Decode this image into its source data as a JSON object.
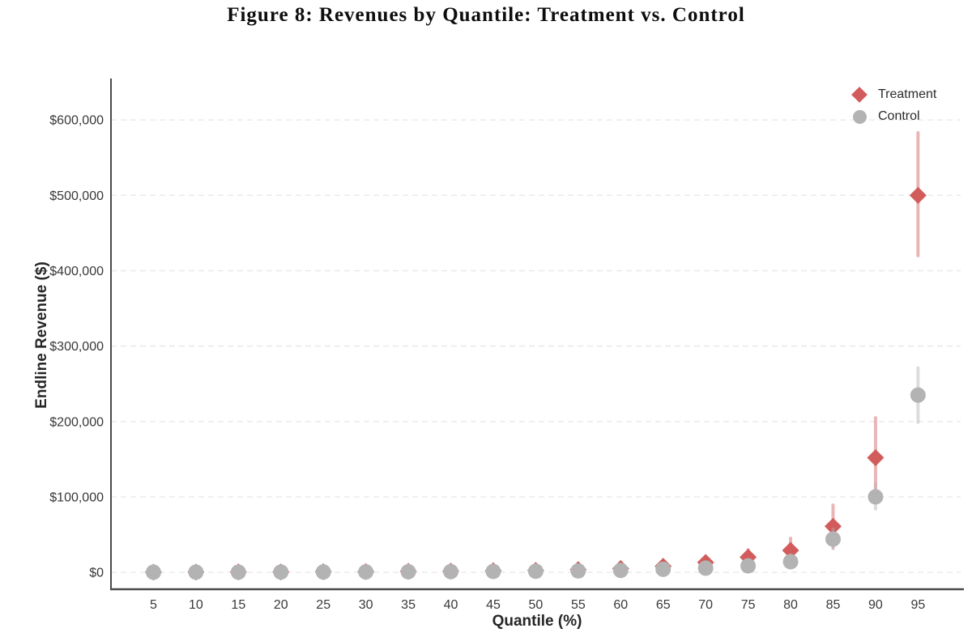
{
  "figure": {
    "title": "Figure 8: Revenues by Quantile: Treatment vs. Control"
  },
  "chart_data": {
    "type": "scatter",
    "title": "Figure 8: Revenues by Quantile: Treatment vs. Control",
    "xlabel": "Quantile (%)",
    "ylabel": "Endline Revenue ($)",
    "x_ticks": [
      5,
      10,
      15,
      20,
      25,
      30,
      35,
      40,
      45,
      50,
      55,
      60,
      65,
      70,
      75,
      80,
      85,
      90,
      95
    ],
    "y_ticks": [
      0,
      100000,
      200000,
      300000,
      400000,
      500000,
      600000
    ],
    "y_tick_labels": [
      "$0",
      "$100,000",
      "$200,000",
      "$300,000",
      "$400,000",
      "$500,000",
      "$600,000"
    ],
    "xlim": [
      0,
      100.4
    ],
    "ylim": [
      -22500,
      655000
    ],
    "grid": "horizontal-dashed",
    "legend_position": "upper right",
    "colors": {
      "treatment": "#d25c5c",
      "control": "#b3b3b3",
      "gridline": "#e9e9e9",
      "spine": "#4a4a4a",
      "tick_text": "#383838"
    },
    "series": [
      {
        "name": "Treatment",
        "marker": "diamond",
        "color": "#d25c5c",
        "bar_opacity": 0.45,
        "x": [
          5,
          10,
          15,
          20,
          25,
          30,
          35,
          40,
          45,
          50,
          55,
          60,
          65,
          70,
          75,
          80,
          85,
          90,
          95
        ],
        "y": [
          200,
          300,
          400,
          500,
          700,
          900,
          1200,
          1500,
          2000,
          2500,
          3500,
          5000,
          8000,
          13000,
          20000,
          29000,
          61000,
          152000,
          500000
        ],
        "ci_low": [
          100,
          150,
          200,
          250,
          350,
          450,
          600,
          800,
          1000,
          1300,
          1800,
          2500,
          3000,
          7000,
          11000,
          13000,
          33000,
          100000,
          420000
        ],
        "ci_high": [
          400,
          550,
          700,
          900,
          1200,
          1500,
          2000,
          2600,
          3400,
          4200,
          5600,
          8000,
          13000,
          20000,
          30000,
          45000,
          89000,
          205000,
          583000
        ]
      },
      {
        "name": "Control",
        "marker": "circle",
        "color": "#b3b3b3",
        "bar_opacity": 0.45,
        "x": [
          5,
          10,
          15,
          20,
          25,
          30,
          35,
          40,
          45,
          50,
          55,
          60,
          65,
          70,
          75,
          80,
          85,
          90,
          95
        ],
        "y": [
          100,
          150,
          200,
          300,
          400,
          500,
          700,
          900,
          1100,
          1400,
          1800,
          2500,
          4000,
          5500,
          8500,
          14000,
          44000,
          100000,
          235000
        ],
        "ci_low": [
          0,
          0,
          100,
          100,
          200,
          250,
          350,
          450,
          550,
          700,
          900,
          1200,
          1500,
          2500,
          4000,
          6000,
          31000,
          84000,
          199000
        ],
        "ci_high": [
          300,
          400,
          500,
          700,
          900,
          1100,
          1400,
          1800,
          2200,
          2800,
          3600,
          5000,
          7000,
          9000,
          13500,
          23000,
          57000,
          117000,
          271000
        ]
      }
    ]
  }
}
